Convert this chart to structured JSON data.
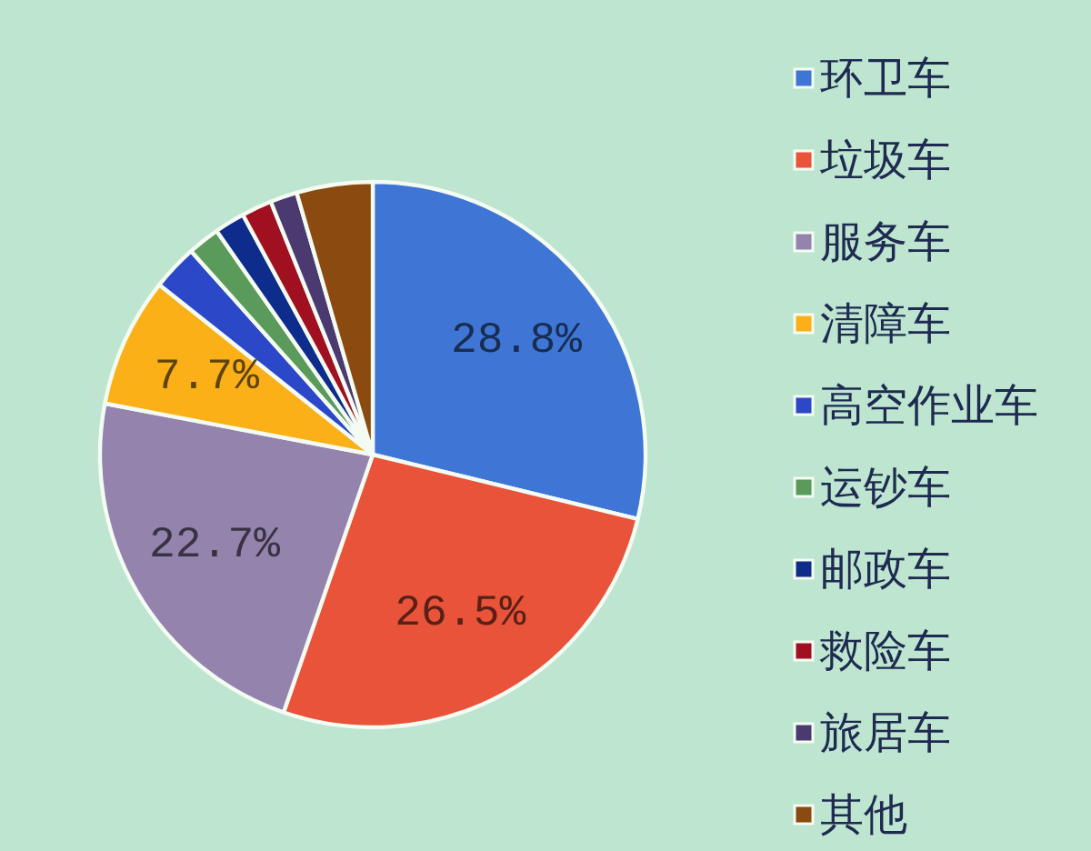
{
  "chart_data": {
    "type": "pie",
    "categories": [
      "环卫车",
      "垃圾车",
      "服务车",
      "清障车",
      "高空作业车",
      "运钞车",
      "邮政车",
      "救险车",
      "旅居车",
      "其他"
    ],
    "values": [
      28.8,
      26.5,
      22.7,
      7.7,
      2.7,
      1.9,
      1.8,
      1.8,
      1.6,
      4.5
    ],
    "colors": [
      "#3f76d6",
      "#e8533a",
      "#9383ad",
      "#fbb017",
      "#2a48c8",
      "#5a9a5a",
      "#0d2c8c",
      "#a01020",
      "#4a3a70",
      "#8a4a10"
    ],
    "value_labels": [
      "28.8%",
      "26.5%",
      "22.7%",
      "7.7%",
      null,
      null,
      null,
      null,
      null,
      null
    ],
    "legend": "right"
  }
}
